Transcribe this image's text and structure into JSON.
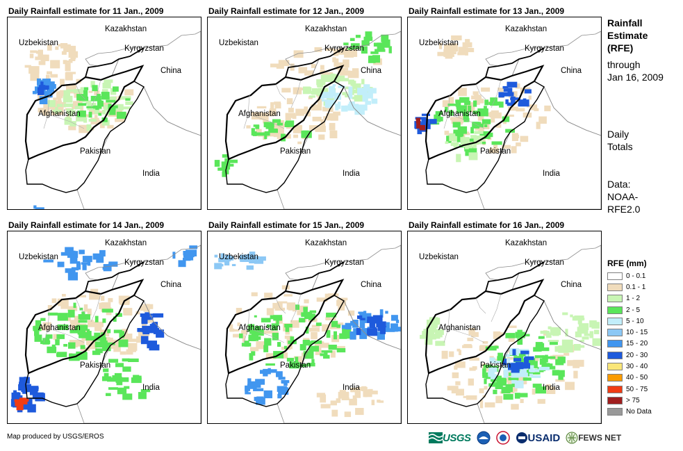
{
  "panels": [
    {
      "title": "Daily Rainfall estimate for 11 Jan., 2009",
      "date": "11 Jan., 2009"
    },
    {
      "title": "Daily Rainfall estimate for 12 Jan., 2009",
      "date": "12 Jan., 2009"
    },
    {
      "title": "Daily Rainfall estimate for 13 Jan., 2009",
      "date": "13 Jan., 2009"
    },
    {
      "title": "Daily Rainfall estimate for 14 Jan., 2009",
      "date": "14 Jan., 2009"
    },
    {
      "title": "Daily Rainfall estimate for 15 Jan., 2009",
      "date": "15 Jan., 2009"
    },
    {
      "title": "Daily Rainfall estimate for 16 Jan., 2009",
      "date": "16 Jan., 2009"
    }
  ],
  "map_labels": {
    "kazakhstan": "Kazakhstan",
    "uzbekistan": "Uzbekistan",
    "kyrgyzstan": "Kyrgyzstan",
    "china": "China",
    "afghanistan": "Afghanistan",
    "pakistan": "Pakistan",
    "india": "India"
  },
  "side_panel": {
    "title_line1": "Rainfall",
    "title_line2": "Estimate",
    "title_line3": "(RFE)",
    "through": "through",
    "end_date": "Jan 16, 2009",
    "totals_line1": "Daily",
    "totals_line2": "Totals",
    "data_line1": "Data:",
    "data_line2": "NOAA-",
    "data_line3": "RFE2.0"
  },
  "legend": {
    "title": "RFE (mm)",
    "items": [
      {
        "label": "0 - 0.1",
        "color": "#ffffff"
      },
      {
        "label": "0.1 - 1",
        "color": "#f0dcbc"
      },
      {
        "label": "1 - 2",
        "color": "#c8f5b4"
      },
      {
        "label": "2 - 5",
        "color": "#5ae65a"
      },
      {
        "label": "5 - 10",
        "color": "#c2eefa"
      },
      {
        "label": "10 - 15",
        "color": "#8cc8f5"
      },
      {
        "label": "15 - 20",
        "color": "#4196ef"
      },
      {
        "label": "20 - 30",
        "color": "#1e5adc"
      },
      {
        "label": "30 - 40",
        "color": "#fae678"
      },
      {
        "label": "40 - 50",
        "color": "#fa9b00"
      },
      {
        "label": "50 - 75",
        "color": "#f03c14"
      },
      {
        "label": "> 75",
        "color": "#a01e1e"
      },
      {
        "label": "No Data",
        "color": "#999999"
      }
    ]
  },
  "footer": {
    "credit": "Map produced by USGS/EROS",
    "usgs": "USGS",
    "usaid": "USAID",
    "fews": "FEWS NET"
  }
}
